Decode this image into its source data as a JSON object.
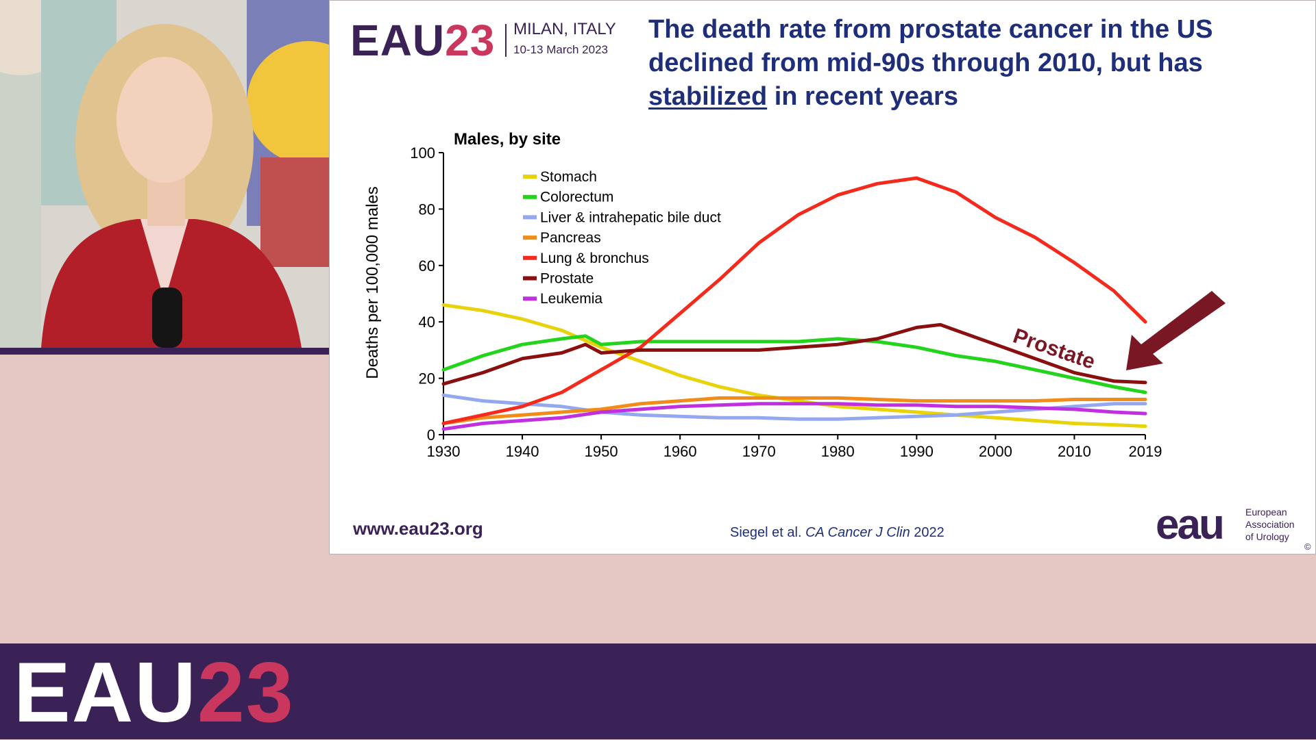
{
  "slide": {
    "logo_eau": "EAU",
    "logo_year": "23",
    "location": "MILAN, ITALY",
    "dates": "10-13 March 2023",
    "title_part1": "The death rate from prostate cancer in the US declined from mid-90s through 2010, but has",
    "title_underlined": "stabilized",
    "title_part2": "in recent years",
    "annotation": "Prostate",
    "url": "www.eau23.org",
    "citation_authors": "Siegel et al.",
    "citation_journal": "CA Cancer J Clin",
    "citation_year": "2022",
    "org_logo": "eau",
    "org_line1": "European",
    "org_line2": "Association",
    "org_line3": "of Urology",
    "copyright": "©"
  },
  "banner": {
    "logo_eau": "EAU",
    "logo_year": "23"
  },
  "chart_data": {
    "type": "line",
    "title": "Males, by site",
    "ylabel": "Deaths per 100,000 males",
    "xlabel": "",
    "xlim": [
      1930,
      2019
    ],
    "ylim": [
      0,
      100
    ],
    "xticks": [
      "1930",
      "1940",
      "1950",
      "1960",
      "1970",
      "1980",
      "1990",
      "2000",
      "2010",
      "2019"
    ],
    "yticks": [
      "0",
      "20",
      "40",
      "60",
      "80",
      "100"
    ],
    "legend_position": "top-left",
    "series": [
      {
        "name": "Stomach",
        "color": "#e8d20a",
        "points": [
          [
            1930,
            46
          ],
          [
            1935,
            44
          ],
          [
            1940,
            41
          ],
          [
            1945,
            37
          ],
          [
            1950,
            31
          ],
          [
            1955,
            26
          ],
          [
            1960,
            21
          ],
          [
            1965,
            17
          ],
          [
            1970,
            14
          ],
          [
            1975,
            12
          ],
          [
            1980,
            10
          ],
          [
            1985,
            9
          ],
          [
            1990,
            8
          ],
          [
            1995,
            7
          ],
          [
            2000,
            6
          ],
          [
            2005,
            5
          ],
          [
            2010,
            4
          ],
          [
            2015,
            3.5
          ],
          [
            2019,
            3
          ]
        ]
      },
      {
        "name": "Colorectum",
        "color": "#24d31c",
        "points": [
          [
            1930,
            23
          ],
          [
            1935,
            28
          ],
          [
            1940,
            32
          ],
          [
            1945,
            34
          ],
          [
            1948,
            35
          ],
          [
            1950,
            32
          ],
          [
            1955,
            33
          ],
          [
            1960,
            33
          ],
          [
            1965,
            33
          ],
          [
            1970,
            33
          ],
          [
            1975,
            33
          ],
          [
            1980,
            34
          ],
          [
            1985,
            33
          ],
          [
            1990,
            31
          ],
          [
            1995,
            28
          ],
          [
            2000,
            26
          ],
          [
            2005,
            23
          ],
          [
            2010,
            20
          ],
          [
            2015,
            17
          ],
          [
            2019,
            15
          ]
        ]
      },
      {
        "name": "Liver & intrahepatic bile duct",
        "color": "#94a8f0",
        "points": [
          [
            1930,
            14
          ],
          [
            1935,
            12
          ],
          [
            1940,
            11
          ],
          [
            1945,
            10
          ],
          [
            1950,
            8
          ],
          [
            1955,
            7
          ],
          [
            1960,
            6.5
          ],
          [
            1965,
            6
          ],
          [
            1970,
            6
          ],
          [
            1975,
            5.5
          ],
          [
            1980,
            5.5
          ],
          [
            1985,
            6
          ],
          [
            1990,
            6.5
          ],
          [
            1995,
            7
          ],
          [
            2000,
            8
          ],
          [
            2005,
            9
          ],
          [
            2010,
            10
          ],
          [
            2015,
            11
          ],
          [
            2019,
            11
          ]
        ]
      },
      {
        "name": "Pancreas",
        "color": "#f28c18",
        "points": [
          [
            1930,
            4
          ],
          [
            1935,
            6
          ],
          [
            1940,
            7
          ],
          [
            1945,
            8
          ],
          [
            1950,
            9
          ],
          [
            1955,
            11
          ],
          [
            1960,
            12
          ],
          [
            1965,
            13
          ],
          [
            1970,
            13
          ],
          [
            1975,
            13
          ],
          [
            1980,
            13
          ],
          [
            1985,
            12.5
          ],
          [
            1990,
            12
          ],
          [
            1995,
            12
          ],
          [
            2000,
            12
          ],
          [
            2005,
            12
          ],
          [
            2010,
            12.5
          ],
          [
            2015,
            12.5
          ],
          [
            2019,
            12.5
          ]
        ]
      },
      {
        "name": "Lung & bronchus",
        "color": "#f42a1c",
        "points": [
          [
            1930,
            4
          ],
          [
            1935,
            7
          ],
          [
            1940,
            10
          ],
          [
            1945,
            15
          ],
          [
            1950,
            23
          ],
          [
            1955,
            31
          ],
          [
            1960,
            43
          ],
          [
            1965,
            55
          ],
          [
            1970,
            68
          ],
          [
            1975,
            78
          ],
          [
            1980,
            85
          ],
          [
            1985,
            89
          ],
          [
            1990,
            91
          ],
          [
            1995,
            86
          ],
          [
            2000,
            77
          ],
          [
            2005,
            70
          ],
          [
            2010,
            61
          ],
          [
            2015,
            51
          ],
          [
            2019,
            40
          ]
        ]
      },
      {
        "name": "Prostate",
        "color": "#8a1010",
        "points": [
          [
            1930,
            18
          ],
          [
            1935,
            22
          ],
          [
            1940,
            27
          ],
          [
            1945,
            29
          ],
          [
            1948,
            32
          ],
          [
            1950,
            29
          ],
          [
            1955,
            30
          ],
          [
            1960,
            30
          ],
          [
            1965,
            30
          ],
          [
            1970,
            30
          ],
          [
            1975,
            31
          ],
          [
            1980,
            32
          ],
          [
            1985,
            34
          ],
          [
            1990,
            38
          ],
          [
            1993,
            39
          ],
          [
            1995,
            37
          ],
          [
            2000,
            32
          ],
          [
            2005,
            27
          ],
          [
            2010,
            22
          ],
          [
            2015,
            19
          ],
          [
            2019,
            18.5
          ]
        ]
      },
      {
        "name": "Leukemia",
        "color": "#c030e0",
        "points": [
          [
            1930,
            2
          ],
          [
            1935,
            4
          ],
          [
            1940,
            5
          ],
          [
            1945,
            6
          ],
          [
            1950,
            8
          ],
          [
            1955,
            9
          ],
          [
            1960,
            10
          ],
          [
            1965,
            10.5
          ],
          [
            1970,
            11
          ],
          [
            1975,
            11
          ],
          [
            1980,
            11
          ],
          [
            1985,
            10.5
          ],
          [
            1990,
            10.5
          ],
          [
            1995,
            10
          ],
          [
            2000,
            10
          ],
          [
            2005,
            9.5
          ],
          [
            2010,
            9
          ],
          [
            2015,
            8
          ],
          [
            2019,
            7.5
          ]
        ]
      }
    ]
  }
}
